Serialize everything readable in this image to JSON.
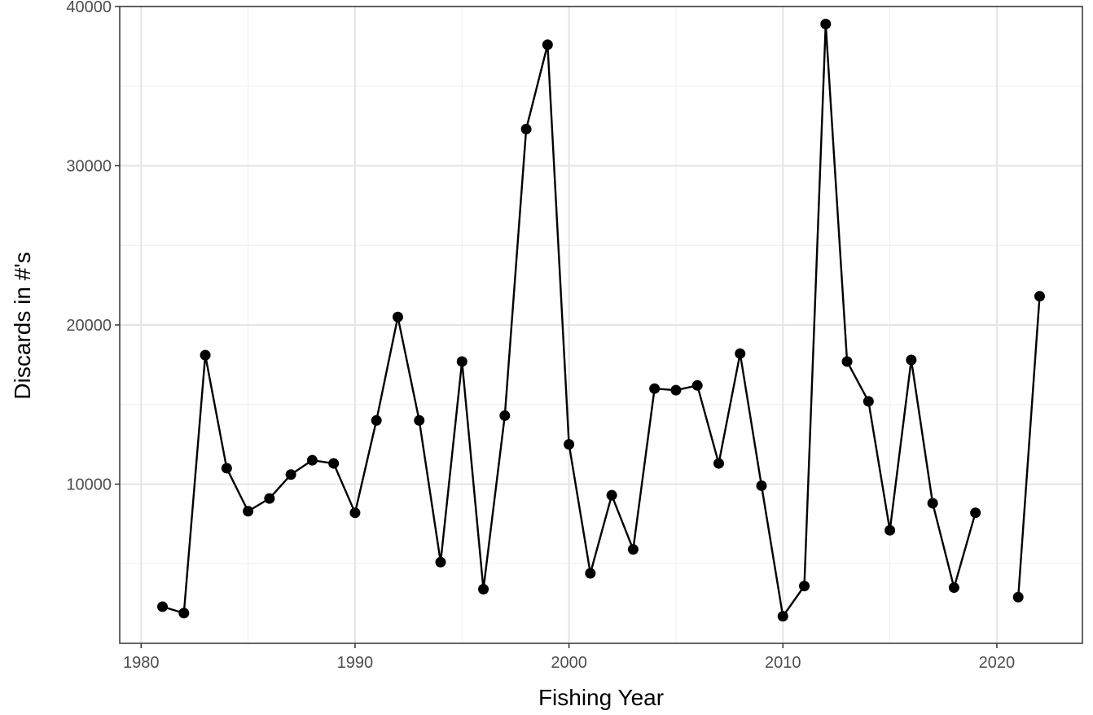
{
  "chart_data": {
    "type": "line",
    "xlabel": "Fishing Year",
    "ylabel": "Discards in #'s",
    "xlim": [
      1979,
      2024
    ],
    "ylim": [
      0,
      40000
    ],
    "x_ticks": [
      1980,
      1990,
      2000,
      2010,
      2020
    ],
    "y_ticks": [
      10000,
      20000,
      30000,
      40000
    ],
    "grid": true,
    "series": [
      {
        "color": "#000000",
        "points": [
          {
            "x": 1981,
            "y": 2300
          },
          {
            "x": 1982,
            "y": 1900
          },
          {
            "x": 1983,
            "y": 18100
          },
          {
            "x": 1984,
            "y": 11000
          },
          {
            "x": 1985,
            "y": 8300
          },
          {
            "x": 1986,
            "y": 9100
          },
          {
            "x": 1987,
            "y": 10600
          },
          {
            "x": 1988,
            "y": 11500
          },
          {
            "x": 1989,
            "y": 11300
          },
          {
            "x": 1990,
            "y": 8200
          },
          {
            "x": 1991,
            "y": 14000
          },
          {
            "x": 1992,
            "y": 20500
          },
          {
            "x": 1993,
            "y": 14000
          },
          {
            "x": 1994,
            "y": 5100
          },
          {
            "x": 1995,
            "y": 17700
          },
          {
            "x": 1996,
            "y": 3400
          },
          {
            "x": 1997,
            "y": 14300
          },
          {
            "x": 1998,
            "y": 32300
          },
          {
            "x": 1999,
            "y": 37600
          },
          {
            "x": 2000,
            "y": 12500
          },
          {
            "x": 2001,
            "y": 4400
          },
          {
            "x": 2002,
            "y": 9300
          },
          {
            "x": 2003,
            "y": 5900
          },
          {
            "x": 2004,
            "y": 16000
          },
          {
            "x": 2005,
            "y": 15900
          },
          {
            "x": 2006,
            "y": 16200
          },
          {
            "x": 2007,
            "y": 11300
          },
          {
            "x": 2008,
            "y": 18200
          },
          {
            "x": 2009,
            "y": 9900
          },
          {
            "x": 2010,
            "y": 1700
          },
          {
            "x": 2011,
            "y": 3600
          },
          {
            "x": 2012,
            "y": 38900
          },
          {
            "x": 2013,
            "y": 17700
          },
          {
            "x": 2014,
            "y": 15200
          },
          {
            "x": 2015,
            "y": 7100
          },
          {
            "x": 2016,
            "y": 17800
          },
          {
            "x": 2017,
            "y": 8800
          },
          {
            "x": 2018,
            "y": 3500
          },
          {
            "x": 2019,
            "y": 8200
          },
          {
            "x": 2021,
            "y": 2900
          },
          {
            "x": 2022,
            "y": 21800
          }
        ]
      }
    ]
  }
}
